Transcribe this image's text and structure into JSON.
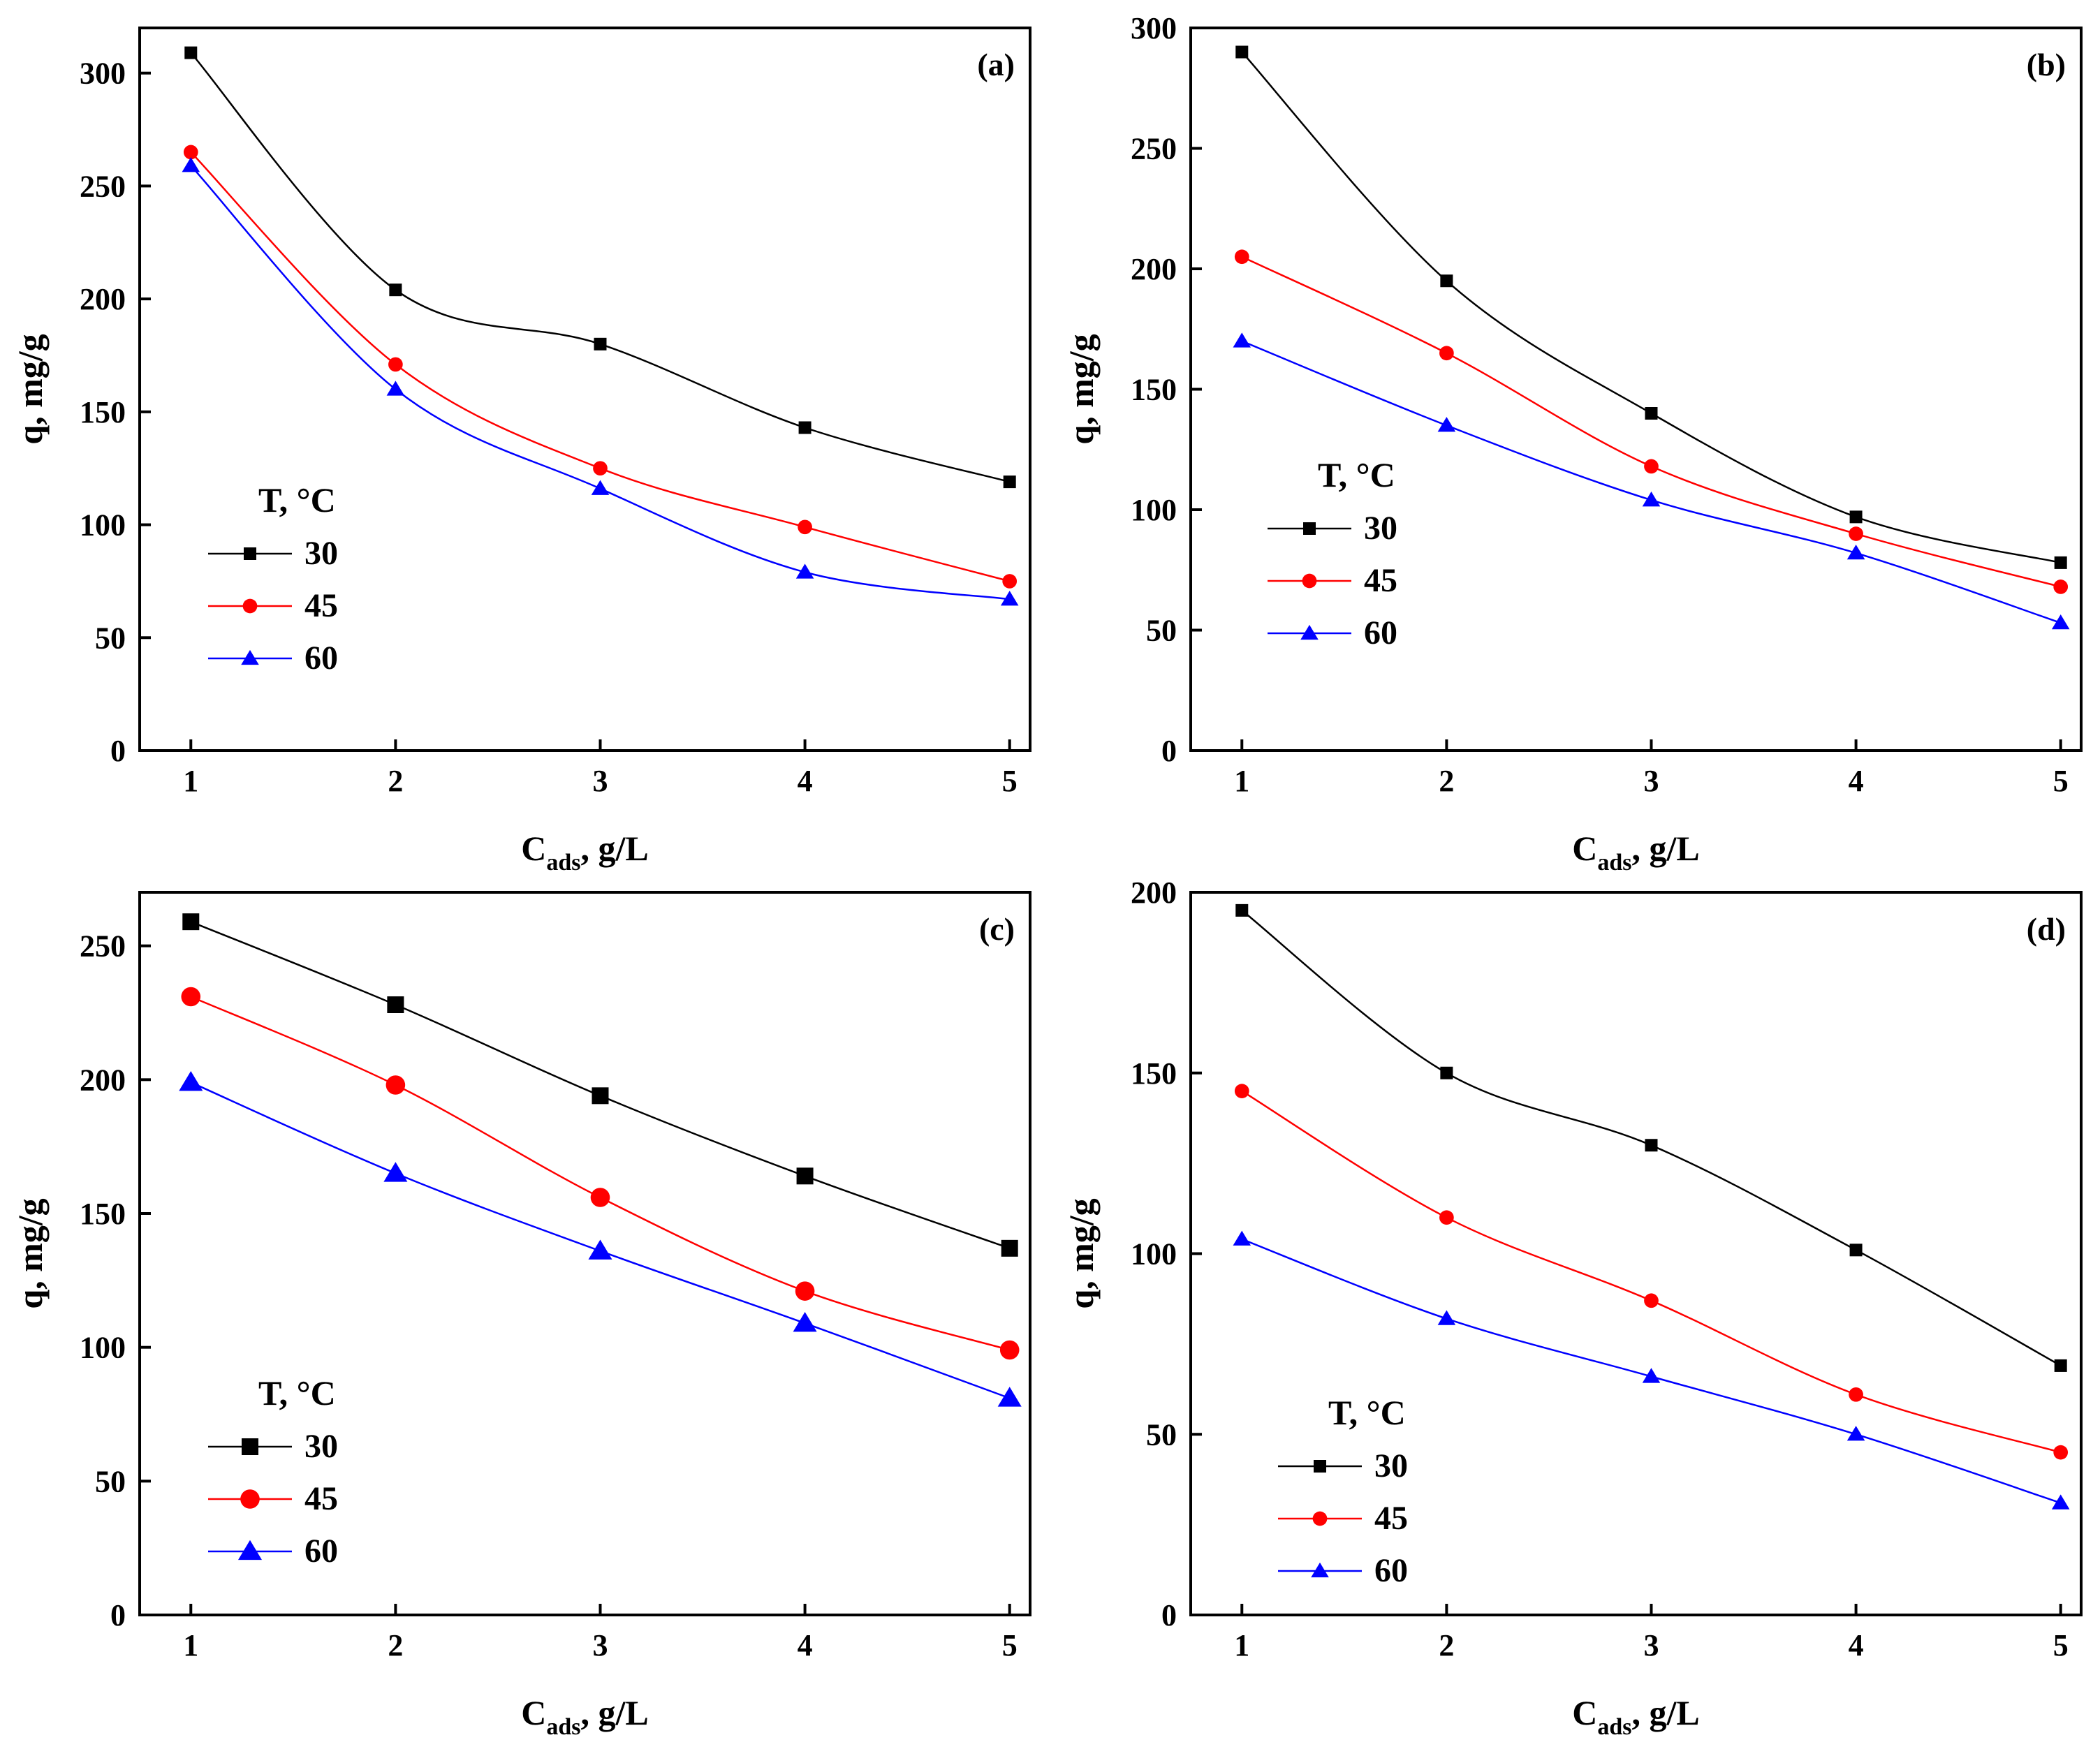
{
  "chart_data": [
    {
      "type": "line",
      "panel_label": "(a)",
      "xlabel_main": "C",
      "xlabel_sub": "ads",
      "xlabel_rest": ", g/L",
      "ylabel": "q, mg/g",
      "x": [
        1,
        2,
        3,
        4,
        5
      ],
      "xticks": [
        1,
        2,
        3,
        4,
        5
      ],
      "xlim": [
        0.75,
        5.1
      ],
      "ylim": [
        0,
        320
      ],
      "yticks": [
        0,
        50,
        100,
        150,
        200,
        250,
        300
      ],
      "legend_title": "T, °C",
      "legend_position": "lower-left",
      "series": [
        {
          "name": "30",
          "color": "#000000",
          "marker": "square",
          "values": [
            309,
            204,
            180,
            143,
            119
          ]
        },
        {
          "name": "45",
          "color": "#ff0000",
          "marker": "circle",
          "values": [
            265,
            171,
            125,
            99,
            75
          ]
        },
        {
          "name": "60",
          "color": "#0000ff",
          "marker": "triangle",
          "values": [
            259,
            160,
            116,
            79,
            67
          ]
        }
      ]
    },
    {
      "type": "line",
      "panel_label": "(b)",
      "xlabel_main": "C",
      "xlabel_sub": "ads",
      "xlabel_rest": ", g/L",
      "ylabel": "q, mg/g",
      "x": [
        1,
        2,
        3,
        4,
        5
      ],
      "xticks": [
        1,
        2,
        3,
        4,
        5
      ],
      "xlim": [
        0.75,
        5.1
      ],
      "ylim": [
        0,
        300
      ],
      "yticks": [
        0,
        50,
        100,
        150,
        200,
        250,
        300
      ],
      "legend_title": "T, °C",
      "legend_position": "lower-left",
      "series": [
        {
          "name": "30",
          "color": "#000000",
          "marker": "square",
          "values": [
            290,
            195,
            140,
            97,
            78
          ]
        },
        {
          "name": "45",
          "color": "#ff0000",
          "marker": "circle",
          "values": [
            205,
            165,
            118,
            90,
            68
          ]
        },
        {
          "name": "60",
          "color": "#0000ff",
          "marker": "triangle",
          "values": [
            170,
            135,
            104,
            82,
            53
          ]
        }
      ]
    },
    {
      "type": "line",
      "panel_label": "(c)",
      "xlabel_main": "C",
      "xlabel_sub": "ads",
      "xlabel_rest": ", g/L",
      "ylabel": "q, mg/g",
      "x": [
        1,
        2,
        3,
        4,
        5
      ],
      "xticks": [
        1,
        2,
        3,
        4,
        5
      ],
      "xlim": [
        0.75,
        5.1
      ],
      "ylim": [
        0,
        270
      ],
      "yticks": [
        0,
        50,
        100,
        150,
        200,
        250
      ],
      "legend_title": "T, °C",
      "legend_position": "lower-left",
      "series": [
        {
          "name": "30",
          "color": "#000000",
          "marker": "square",
          "values": [
            259,
            228,
            194,
            164,
            137
          ]
        },
        {
          "name": "45",
          "color": "#ff0000",
          "marker": "circle",
          "values": [
            231,
            198,
            156,
            121,
            99
          ]
        },
        {
          "name": "60",
          "color": "#0000ff",
          "marker": "triangle",
          "values": [
            199,
            165,
            136,
            109,
            81
          ]
        }
      ]
    },
    {
      "type": "line",
      "panel_label": "(d)",
      "xlabel_main": "C",
      "xlabel_sub": "ads",
      "xlabel_rest": ", g/L",
      "ylabel": "q, mg/g",
      "x": [
        1,
        2,
        3,
        4,
        5
      ],
      "xticks": [
        1,
        2,
        3,
        4,
        5
      ],
      "xlim": [
        0.75,
        5.1
      ],
      "ylim": [
        0,
        200
      ],
      "yticks": [
        0,
        50,
        100,
        150,
        200
      ],
      "legend_title": "T, °C",
      "legend_position": "lower-left",
      "series": [
        {
          "name": "30",
          "color": "#000000",
          "marker": "square",
          "values": [
            195,
            150,
            130,
            101,
            69
          ]
        },
        {
          "name": "45",
          "color": "#ff0000",
          "marker": "circle",
          "values": [
            145,
            110,
            87,
            61,
            45
          ]
        },
        {
          "name": "60",
          "color": "#0000ff",
          "marker": "triangle",
          "values": [
            104,
            82,
            66,
            50,
            31
          ]
        }
      ]
    }
  ]
}
